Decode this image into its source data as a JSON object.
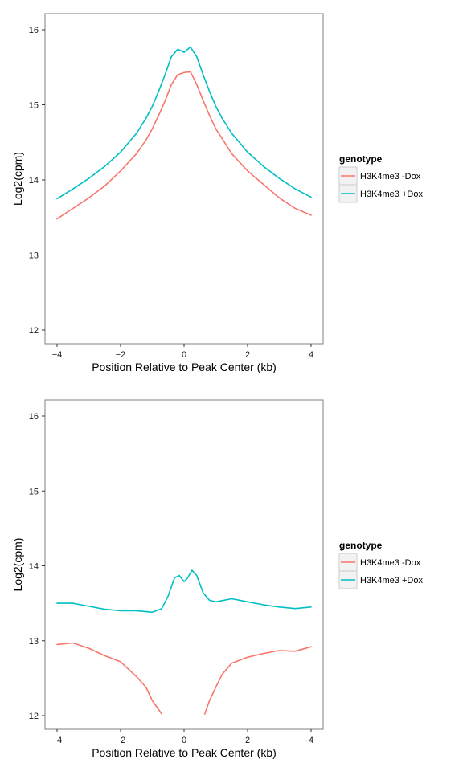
{
  "chart_data": [
    {
      "type": "line",
      "xlabel": "Position Relative to Peak Center (kb)",
      "ylabel": "Log2(cpm)",
      "xlim": [
        -4,
        4
      ],
      "ylim": [
        12,
        16
      ],
      "xticks": [
        -4,
        -2,
        0,
        2,
        4
      ],
      "yticks": [
        12,
        13,
        14,
        15,
        16
      ],
      "grid": false,
      "legend": {
        "title": "genotype",
        "placement": "right"
      },
      "series": [
        {
          "name": "H3K4me3 -Dox",
          "color": "#f8766d",
          "x": [
            -4.0,
            -3.5,
            -3.0,
            -2.5,
            -2.0,
            -1.5,
            -1.2,
            -1.0,
            -0.8,
            -0.6,
            -0.4,
            -0.2,
            0.0,
            0.2,
            0.4,
            0.6,
            0.8,
            1.0,
            1.2,
            1.5,
            2.0,
            2.5,
            3.0,
            3.5,
            4.0
          ],
          "y": [
            13.48,
            13.62,
            13.76,
            13.92,
            14.12,
            14.35,
            14.53,
            14.68,
            14.86,
            15.05,
            15.27,
            15.4,
            15.43,
            15.44,
            15.27,
            15.06,
            14.86,
            14.68,
            14.55,
            14.35,
            14.12,
            13.94,
            13.76,
            13.62,
            13.53
          ]
        },
        {
          "name": "H3K4me3 +Dox",
          "color": "#00bfc4",
          "x": [
            -4.0,
            -3.5,
            -3.0,
            -2.5,
            -2.0,
            -1.5,
            -1.2,
            -1.0,
            -0.8,
            -0.6,
            -0.4,
            -0.2,
            0.0,
            0.2,
            0.4,
            0.6,
            0.8,
            1.0,
            1.2,
            1.5,
            2.0,
            2.5,
            3.0,
            3.5,
            4.0
          ],
          "y": [
            13.75,
            13.88,
            14.02,
            14.18,
            14.37,
            14.62,
            14.82,
            14.98,
            15.18,
            15.4,
            15.64,
            15.74,
            15.7,
            15.77,
            15.64,
            15.4,
            15.18,
            14.98,
            14.82,
            14.62,
            14.37,
            14.18,
            14.02,
            13.88,
            13.77
          ]
        }
      ]
    },
    {
      "type": "line",
      "xlabel": "Position Relative to Peak Center (kb)",
      "ylabel": "Log2(cpm)",
      "xlim": [
        -4,
        4
      ],
      "ylim": [
        12,
        16
      ],
      "xticks": [
        -4,
        -2,
        0,
        2,
        4
      ],
      "yticks": [
        12,
        13,
        14,
        15,
        16
      ],
      "grid": false,
      "legend": {
        "title": "genotype",
        "placement": "right"
      },
      "series": [
        {
          "name": "H3K4me3 -Dox",
          "color": "#f8766d",
          "x": [
            -4.0,
            -3.5,
            -3.0,
            -2.5,
            -2.0,
            -1.5,
            -1.2,
            -1.0,
            -0.8,
            -0.7,
            null,
            0.65,
            0.8,
            1.0,
            1.2,
            1.5,
            2.0,
            2.5,
            3.0,
            3.5,
            4.0
          ],
          "y": [
            12.95,
            12.97,
            12.9,
            12.8,
            12.72,
            12.52,
            12.38,
            12.2,
            12.08,
            12.02,
            null,
            12.02,
            12.2,
            12.38,
            12.55,
            12.7,
            12.78,
            12.83,
            12.87,
            12.86,
            12.92
          ]
        },
        {
          "name": "H3K4me3 +Dox",
          "color": "#00bfc4",
          "x": [
            -4.0,
            -3.5,
            -3.0,
            -2.5,
            -2.0,
            -1.5,
            -1.0,
            -0.7,
            -0.5,
            -0.3,
            -0.15,
            0.0,
            0.1,
            0.25,
            0.4,
            0.6,
            0.8,
            1.0,
            1.5,
            2.0,
            2.5,
            3.0,
            3.5,
            4.0
          ],
          "y": [
            13.5,
            13.5,
            13.46,
            13.42,
            13.4,
            13.4,
            13.38,
            13.43,
            13.6,
            13.84,
            13.87,
            13.79,
            13.83,
            13.94,
            13.87,
            13.64,
            13.54,
            13.52,
            13.56,
            13.52,
            13.48,
            13.45,
            13.43,
            13.45
          ]
        }
      ]
    }
  ]
}
